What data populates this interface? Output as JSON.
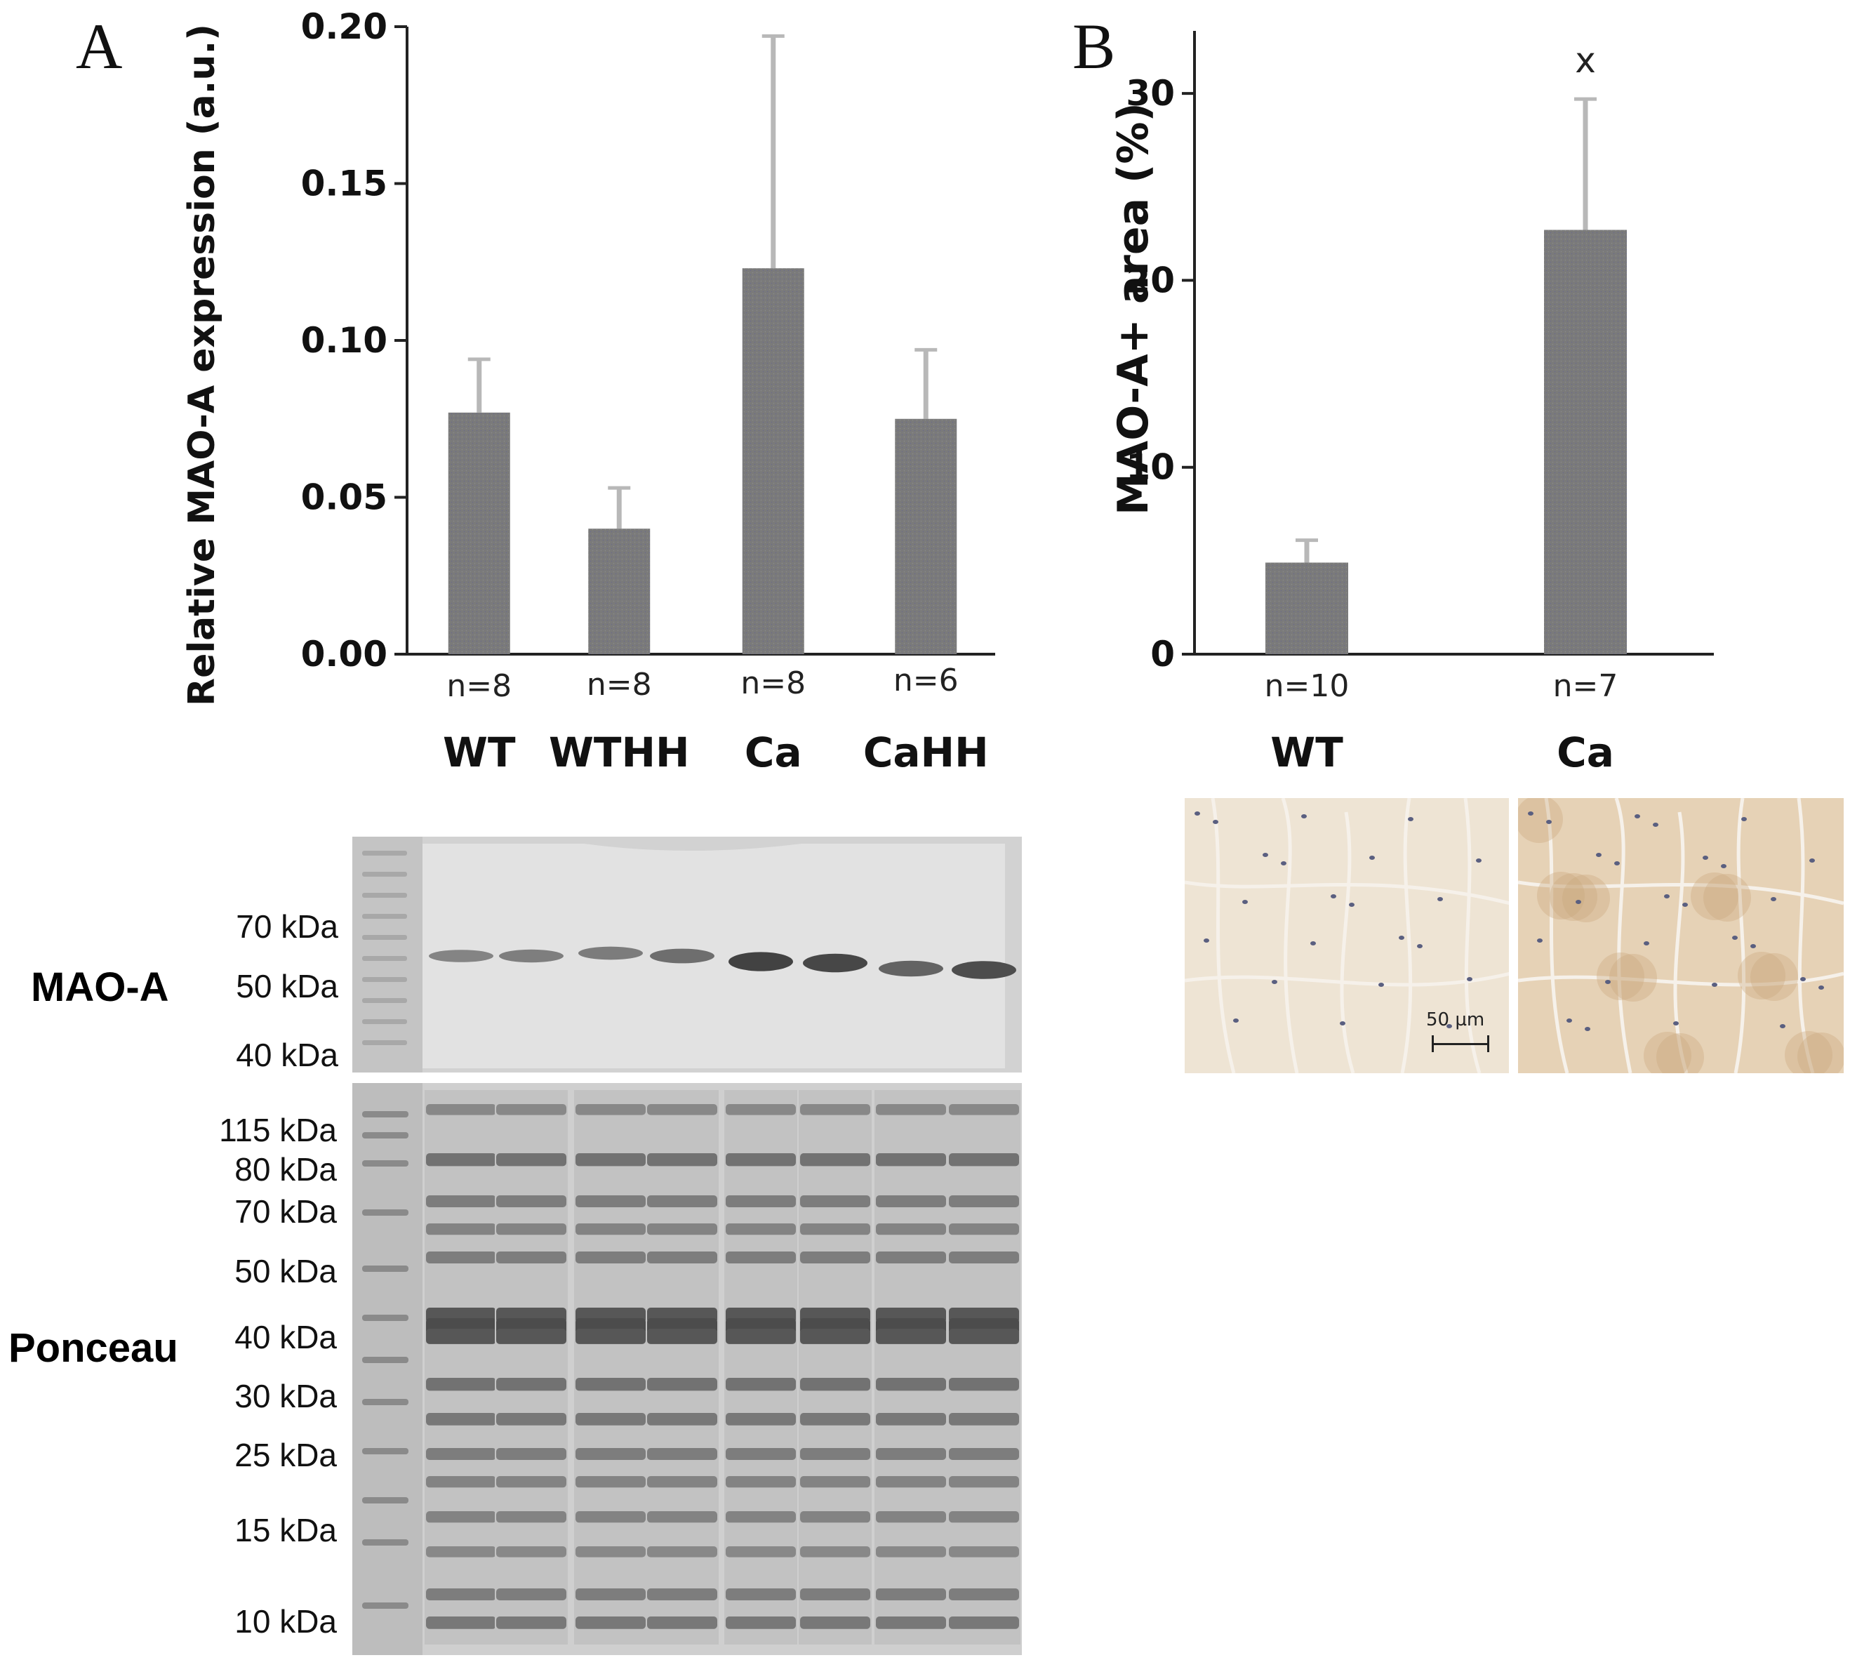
{
  "panel_a": {
    "letter": "A",
    "blot": {
      "mao_label": "MAO-A",
      "ponceau_label": "Ponceau",
      "mao_markers": [
        "70 kDa",
        "50 kDa",
        "40 kDa"
      ],
      "ponceau_markers": [
        "115 kDa",
        "80 kDa",
        "70 kDa",
        "50 kDa",
        "40 kDa",
        "30 kDa",
        "25 kDa",
        "15 kDa",
        "10 kDa"
      ]
    }
  },
  "panel_b": {
    "letter": "B",
    "scale_bar": "50 µm"
  },
  "chart_data": [
    {
      "type": "bar",
      "title": "",
      "xlabel": "",
      "ylabel": "Relative MAO-A expression (a.u.)",
      "ylim": [
        0,
        0.2
      ],
      "yticks": [
        "0.00",
        "0.05",
        "0.10",
        "0.15",
        "0.20"
      ],
      "categories": [
        "WT",
        "WTHH",
        "Ca",
        "CaHH"
      ],
      "n_labels": [
        "n=8",
        "n=8",
        "n=8",
        "n=6"
      ],
      "values": [
        0.077,
        0.04,
        0.123,
        0.075
      ],
      "errors": [
        0.017,
        0.013,
        0.074,
        0.022
      ],
      "bar_color": "#7a7a7a",
      "grid": false
    },
    {
      "type": "bar",
      "title": "",
      "xlabel": "",
      "ylabel": "MAO-A+ area (%)",
      "ylim": [
        0,
        35
      ],
      "yticks": [
        "0",
        "10",
        "20",
        "30"
      ],
      "categories": [
        "WT",
        "Ca"
      ],
      "n_labels": [
        "n=10",
        "n=7"
      ],
      "values": [
        4.9,
        22.7
      ],
      "errors": [
        1.2,
        7.0
      ],
      "annotations": [
        "",
        "x"
      ],
      "bar_color": "#7a7a7a",
      "grid": false
    }
  ]
}
